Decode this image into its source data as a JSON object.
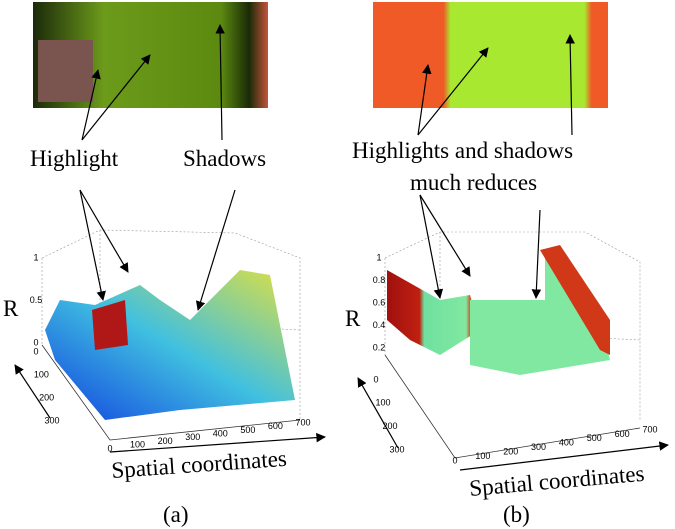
{
  "panels": [
    {
      "annotations": [
        "Highlight",
        "Shadows"
      ],
      "z_axis_label": "R",
      "x_axis_label": "Spatial coordinates",
      "caption": "(a)",
      "zticks": [
        0,
        0.5,
        1
      ],
      "xticks": [
        0,
        100,
        200,
        300,
        400,
        500,
        600,
        700
      ],
      "yticks": [
        0,
        100,
        200,
        300
      ]
    },
    {
      "annotations": [
        "Highlights and shadows",
        "much reduces"
      ],
      "z_axis_label": "R",
      "x_axis_label": "Spatial coordinates",
      "caption": "(b)",
      "zticks": [
        0.2,
        0.4,
        0.6,
        0.8,
        1
      ],
      "xticks": [
        0,
        100,
        200,
        300,
        400,
        500,
        600,
        700
      ],
      "yticks": [
        0,
        100,
        200,
        300
      ]
    }
  ]
}
